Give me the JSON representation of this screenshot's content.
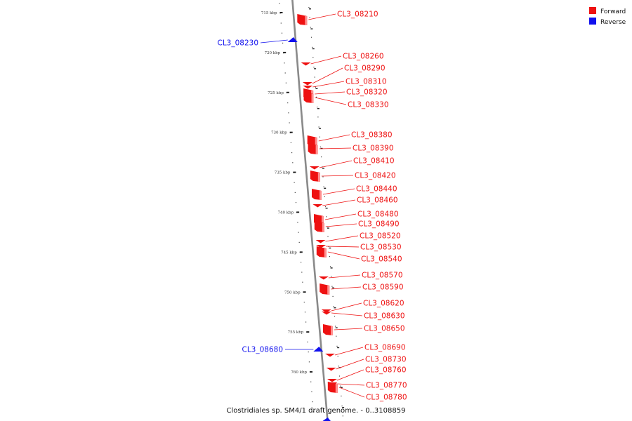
{
  "caption": "Clostridiales sp. SM4/1 draft genome. - 0..3108859",
  "legend": [
    {
      "label": "Forward",
      "color": "#ee1111"
    },
    {
      "label": "Reverse",
      "color": "#1111ee"
    }
  ],
  "colors": {
    "forward": "#ee1111",
    "reverse": "#1111ee",
    "backbone": "#8a8a8a"
  },
  "ticks": [
    "715 kbp",
    "720 kbp",
    "725 kbp",
    "730 kbp",
    "735 kbp",
    "740 kbp",
    "745 kbp",
    "750 kbp",
    "755 kbp",
    "760 kbp"
  ],
  "genes": [
    {
      "name": "CL3_08210",
      "strand": "forward"
    },
    {
      "name": "CL3_08230",
      "strand": "reverse"
    },
    {
      "name": "CL3_08260",
      "strand": "forward"
    },
    {
      "name": "CL3_08290",
      "strand": "forward"
    },
    {
      "name": "CL3_08310",
      "strand": "forward"
    },
    {
      "name": "CL3_08320",
      "strand": "forward"
    },
    {
      "name": "CL3_08330",
      "strand": "forward"
    },
    {
      "name": "CL3_08380",
      "strand": "forward"
    },
    {
      "name": "CL3_08390",
      "strand": "forward"
    },
    {
      "name": "CL3_08410",
      "strand": "forward"
    },
    {
      "name": "CL3_08420",
      "strand": "forward"
    },
    {
      "name": "CL3_08440",
      "strand": "forward"
    },
    {
      "name": "CL3_08460",
      "strand": "forward"
    },
    {
      "name": "CL3_08480",
      "strand": "forward"
    },
    {
      "name": "CL3_08490",
      "strand": "forward"
    },
    {
      "name": "CL3_08520",
      "strand": "forward"
    },
    {
      "name": "CL3_08530",
      "strand": "forward"
    },
    {
      "name": "CL3_08540",
      "strand": "forward"
    },
    {
      "name": "CL3_08570",
      "strand": "forward"
    },
    {
      "name": "CL3_08590",
      "strand": "forward"
    },
    {
      "name": "CL3_08620",
      "strand": "forward"
    },
    {
      "name": "CL3_08630",
      "strand": "forward"
    },
    {
      "name": "CL3_08650",
      "strand": "forward"
    },
    {
      "name": "CL3_08680",
      "strand": "reverse"
    },
    {
      "name": "CL3_08690",
      "strand": "forward"
    },
    {
      "name": "CL3_08730",
      "strand": "forward"
    },
    {
      "name": "CL3_08760",
      "strand": "forward"
    },
    {
      "name": "CL3_08770",
      "strand": "forward"
    },
    {
      "name": "CL3_08780",
      "strand": "forward"
    }
  ]
}
